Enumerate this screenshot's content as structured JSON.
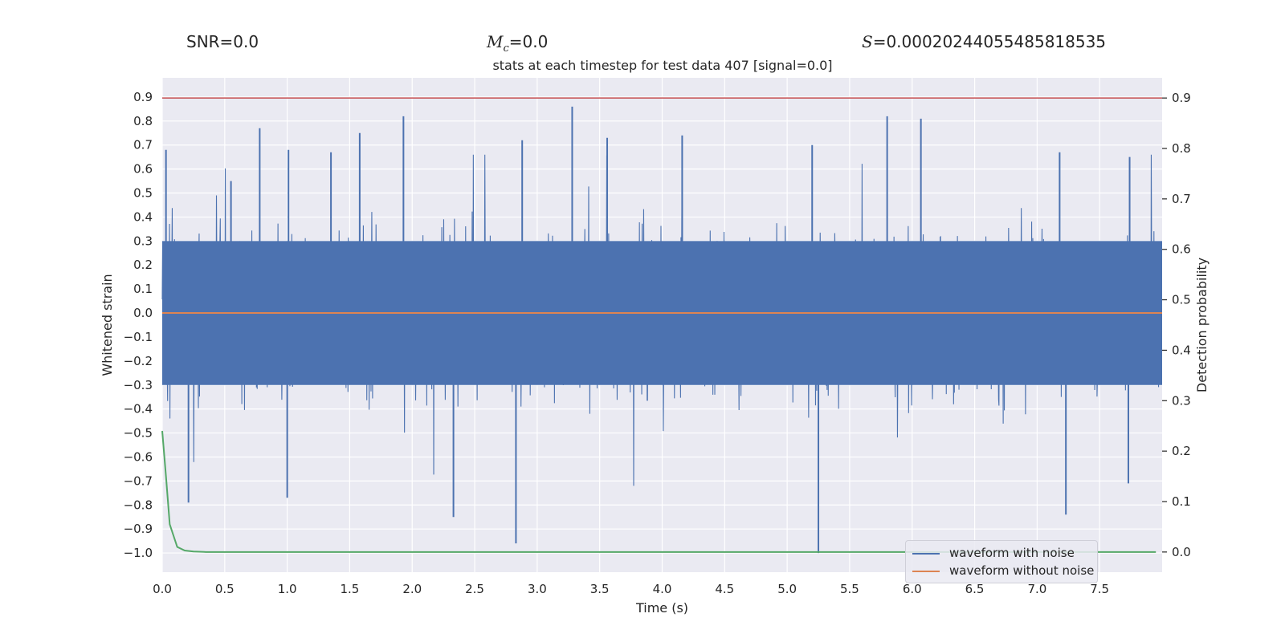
{
  "header": {
    "snr_text": "SNR=0.0",
    "mc_symbol": "M",
    "mc_subscript": "c",
    "mc_value": "=0.0",
    "s_symbol": "S",
    "s_value": "=0.00020244055485818535"
  },
  "chart_data": {
    "type": "line",
    "title": "stats at each timestep for test data 407 [signal=0.0]",
    "xlabel": "Time (s)",
    "ylabel": "Whitened strain",
    "ylabel_right": "Detection probability",
    "xlim": [
      0.0,
      8.0
    ],
    "ylim": [
      -1.08,
      0.98
    ],
    "ylim_right": [
      -0.04,
      0.94
    ],
    "x_ticks": [
      0.0,
      0.5,
      1.0,
      1.5,
      2.0,
      2.5,
      3.0,
      3.5,
      4.0,
      4.5,
      5.0,
      5.5,
      6.0,
      6.5,
      7.0,
      7.5
    ],
    "x_tick_labels": [
      "0.0",
      "0.5",
      "1.0",
      "1.5",
      "2.0",
      "2.5",
      "3.0",
      "3.5",
      "4.0",
      "4.5",
      "5.0",
      "5.5",
      "6.0",
      "6.5",
      "7.0",
      "7.5"
    ],
    "y_ticks": [
      0.9,
      0.8,
      0.7,
      0.6,
      0.5,
      0.4,
      0.3,
      0.2,
      0.1,
      0.0,
      -0.1,
      -0.2,
      -0.3,
      -0.4,
      -0.5,
      -0.6,
      -0.7,
      -0.8,
      -0.9,
      -1.0
    ],
    "y_tick_labels": [
      "0.9",
      "0.8",
      "0.7",
      "0.6",
      "0.5",
      "0.4",
      "0.3",
      "0.2",
      "0.1",
      "0.0",
      "−0.1",
      "−0.2",
      "−0.3",
      "−0.4",
      "−0.5",
      "−0.6",
      "−0.7",
      "−0.8",
      "−0.9",
      "−1.0"
    ],
    "y_right_ticks": [
      0.9,
      0.8,
      0.7,
      0.6,
      0.5,
      0.4,
      0.3,
      0.2,
      0.1,
      0.0
    ],
    "y_right_tick_labels": [
      "0.9",
      "0.8",
      "0.7",
      "0.6",
      "0.5",
      "0.4",
      "0.3",
      "0.2",
      "0.1",
      "0.0"
    ],
    "series": [
      {
        "name": "waveform with noise",
        "color": "#4c72b0",
        "axis": "left",
        "description": "dense noise, roughly band -0.3..0.3 with spikes",
        "band": [
          -0.3,
          0.3
        ],
        "peaks": [
          {
            "x": 0.03,
            "y": 0.68
          },
          {
            "x": 0.55,
            "y": 0.55
          },
          {
            "x": 0.78,
            "y": 0.77
          },
          {
            "x": 1.01,
            "y": 0.68
          },
          {
            "x": 1.35,
            "y": 0.67
          },
          {
            "x": 1.58,
            "y": 0.75
          },
          {
            "x": 1.93,
            "y": 0.82
          },
          {
            "x": 2.88,
            "y": 0.72
          },
          {
            "x": 3.28,
            "y": 0.86
          },
          {
            "x": 3.56,
            "y": 0.73
          },
          {
            "x": 4.16,
            "y": 0.74
          },
          {
            "x": 5.2,
            "y": 0.7
          },
          {
            "x": 5.8,
            "y": 0.82
          },
          {
            "x": 6.07,
            "y": 0.81
          },
          {
            "x": 7.18,
            "y": 0.67
          },
          {
            "x": 7.74,
            "y": 0.65
          }
        ],
        "troughs": [
          {
            "x": 0.21,
            "y": -0.79
          },
          {
            "x": 1.0,
            "y": -0.77
          },
          {
            "x": 2.33,
            "y": -0.85
          },
          {
            "x": 2.83,
            "y": -0.96
          },
          {
            "x": 5.25,
            "y": -1.0
          },
          {
            "x": 7.23,
            "y": -0.84
          },
          {
            "x": 7.73,
            "y": -0.71
          }
        ]
      },
      {
        "name": "waveform without noise",
        "color": "#dd8452",
        "axis": "left",
        "y": 0.0
      },
      {
        "name": "detection probability",
        "color": "#55a868",
        "axis": "right",
        "x": [
          0.0,
          0.03,
          0.06,
          0.12,
          0.18,
          0.25,
          0.35,
          0.5,
          1.0,
          7.95
        ],
        "y": [
          0.24,
          0.15,
          0.055,
          0.01,
          0.003,
          0.001,
          0.0,
          0.0,
          0.0,
          0.0
        ]
      }
    ],
    "threshold": {
      "color": "#c44e52",
      "axis": "right",
      "y": 0.9
    },
    "legend": {
      "position": "lower-right",
      "entries": [
        {
          "label": "waveform with noise",
          "color": "#4c72b0"
        },
        {
          "label": "waveform without noise",
          "color": "#dd8452"
        }
      ]
    },
    "colors": {
      "plot_bg": "#eaeaf2",
      "grid": "#ffffff"
    }
  }
}
